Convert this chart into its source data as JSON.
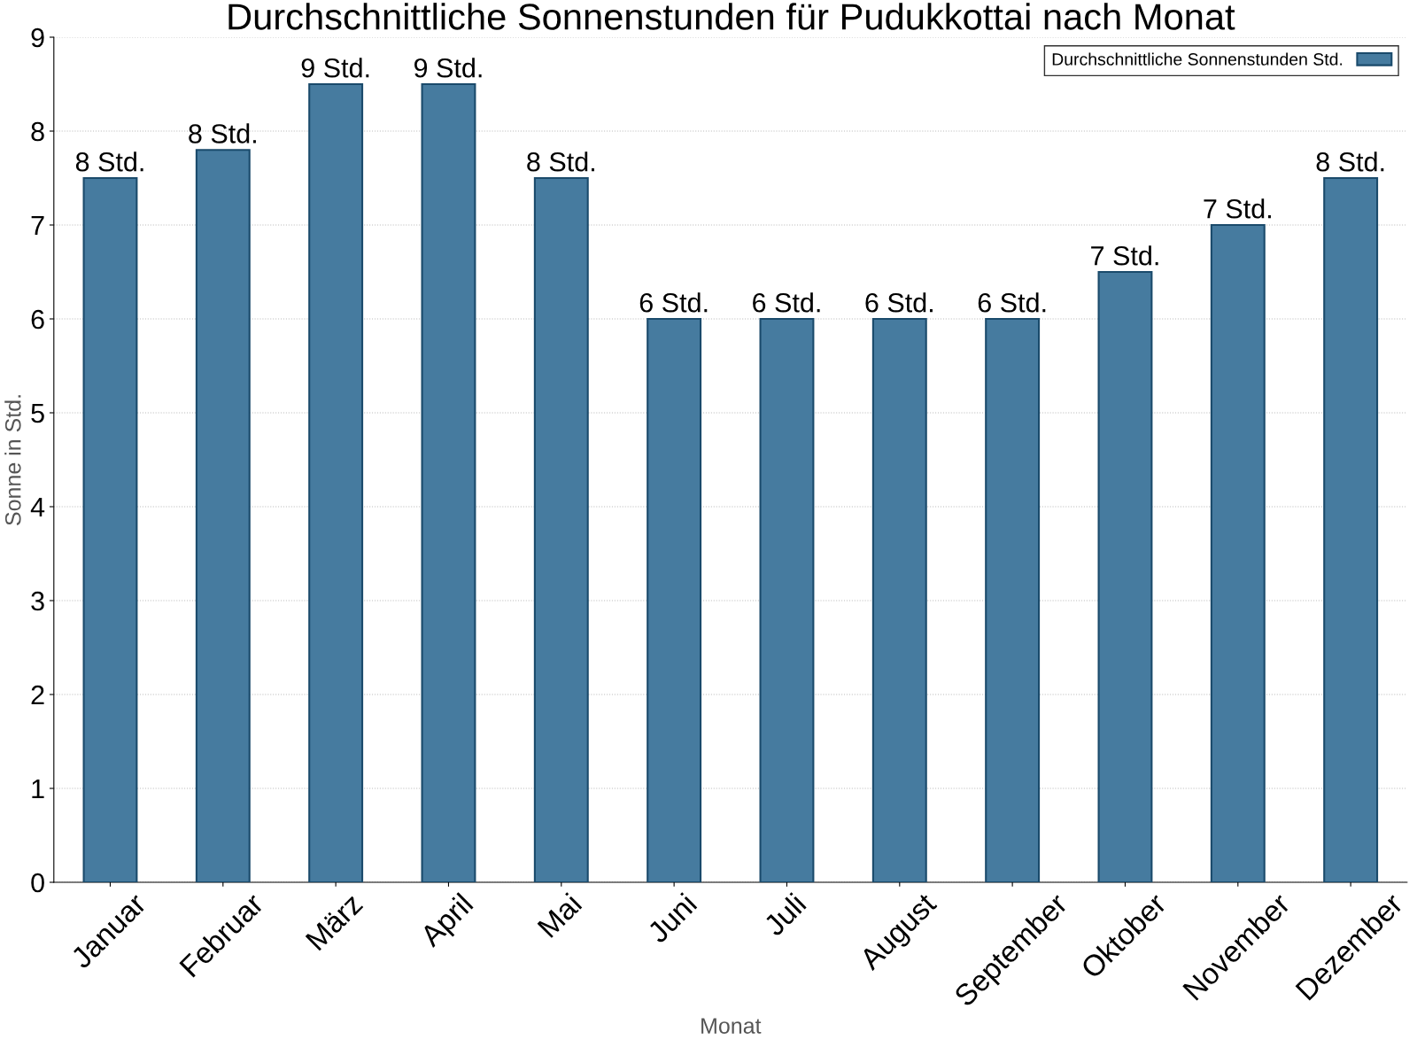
{
  "chart_data": {
    "type": "bar",
    "title": "Durchschnittliche Sonnenstunden für Pudukkottai nach Monat",
    "xlabel": "Monat",
    "ylabel": "Sonne in Std.",
    "categories": [
      "Januar",
      "Februar",
      "März",
      "April",
      "Mai",
      "Juni",
      "Juli",
      "August",
      "September",
      "Oktober",
      "November",
      "Dezember"
    ],
    "series": [
      {
        "name": "Durchschnittliche Sonnenstunden Std.",
        "color": "#467b9f",
        "values": [
          7.5,
          7.8,
          8.5,
          8.5,
          7.5,
          6,
          6,
          6,
          6,
          6.5,
          7,
          7.5
        ],
        "value_labels": [
          "8 Std.",
          "8 Std.",
          "9 Std.",
          "9 Std.",
          "8 Std.",
          "6 Std.",
          "6 Std.",
          "6 Std.",
          "6 Std.",
          "7 Std.",
          "7 Std.",
          "8 Std."
        ]
      }
    ],
    "ylim": [
      0,
      9
    ],
    "yticks": [
      0,
      1,
      2,
      3,
      4,
      5,
      6,
      7,
      8,
      9
    ],
    "grid": "y",
    "legend": "top right"
  }
}
